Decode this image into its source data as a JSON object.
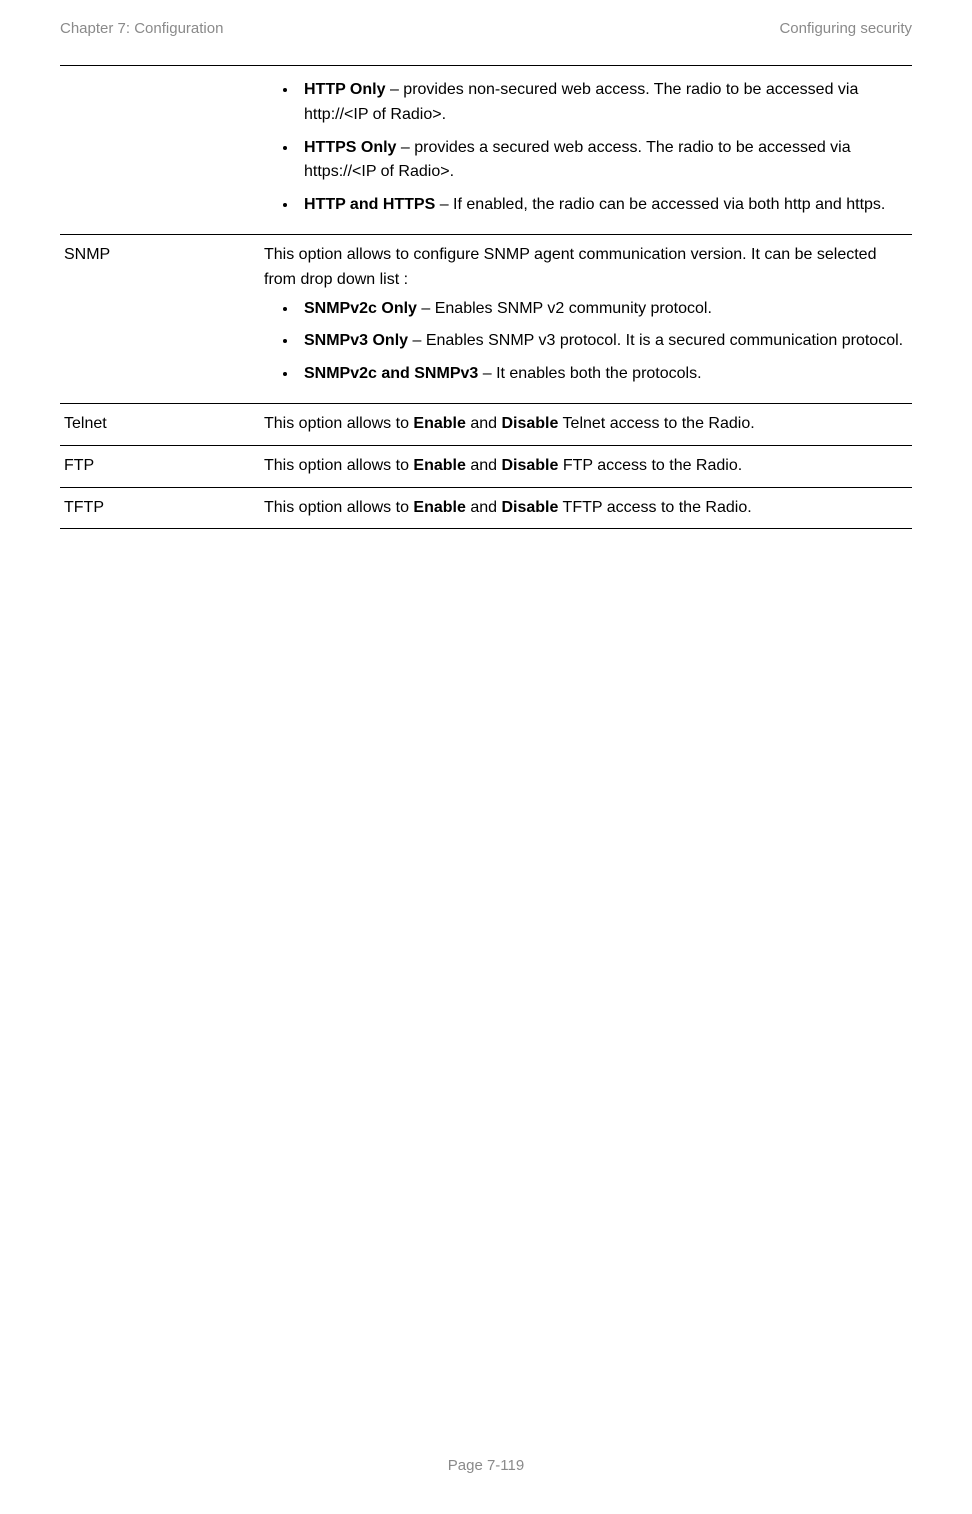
{
  "header": {
    "left": "Chapter 7:  Configuration",
    "right": "Configuring security"
  },
  "rows": [
    {
      "label": "",
      "intro": "",
      "bullets": [
        {
          "bold": "HTTP Only",
          "rest": " – provides non-secured web access. The radio to be accessed via http://<IP of Radio>."
        },
        {
          "bold": "HTTPS Only",
          "rest": " – provides a secured web access. The radio to be accessed via https://<IP of Radio>."
        },
        {
          "bold": "HTTP and HTTPS",
          "rest": " – If enabled, the radio can be accessed via both http and https."
        }
      ]
    },
    {
      "label": "SNMP",
      "intro": "This option allows to configure SNMP agent communication version. It can be selected from drop down list :",
      "bullets": [
        {
          "bold": "SNMPv2c Only",
          "rest": " – Enables SNMP v2 community protocol."
        },
        {
          "bold": "SNMPv3 Only",
          "rest": " – Enables SNMP v3 protocol. It is a secured communication protocol."
        },
        {
          "bold": "SNMPv2c and SNMPv3",
          "rest": " – It enables both the protocols."
        }
      ]
    },
    {
      "label": "Telnet",
      "intro_parts": [
        "This option allows to ",
        "Enable",
        " and ",
        "Disable",
        " Telnet access to the Radio."
      ]
    },
    {
      "label": "FTP",
      "intro_parts": [
        "This option allows to ",
        "Enable",
        " and ",
        "Disable",
        " FTP access to the Radio."
      ]
    },
    {
      "label": "TFTP",
      "intro_parts": [
        "This option allows to ",
        "Enable",
        " and ",
        "Disable",
        " TFTP access to the Radio."
      ]
    }
  ],
  "footer": "Page 7-119"
}
